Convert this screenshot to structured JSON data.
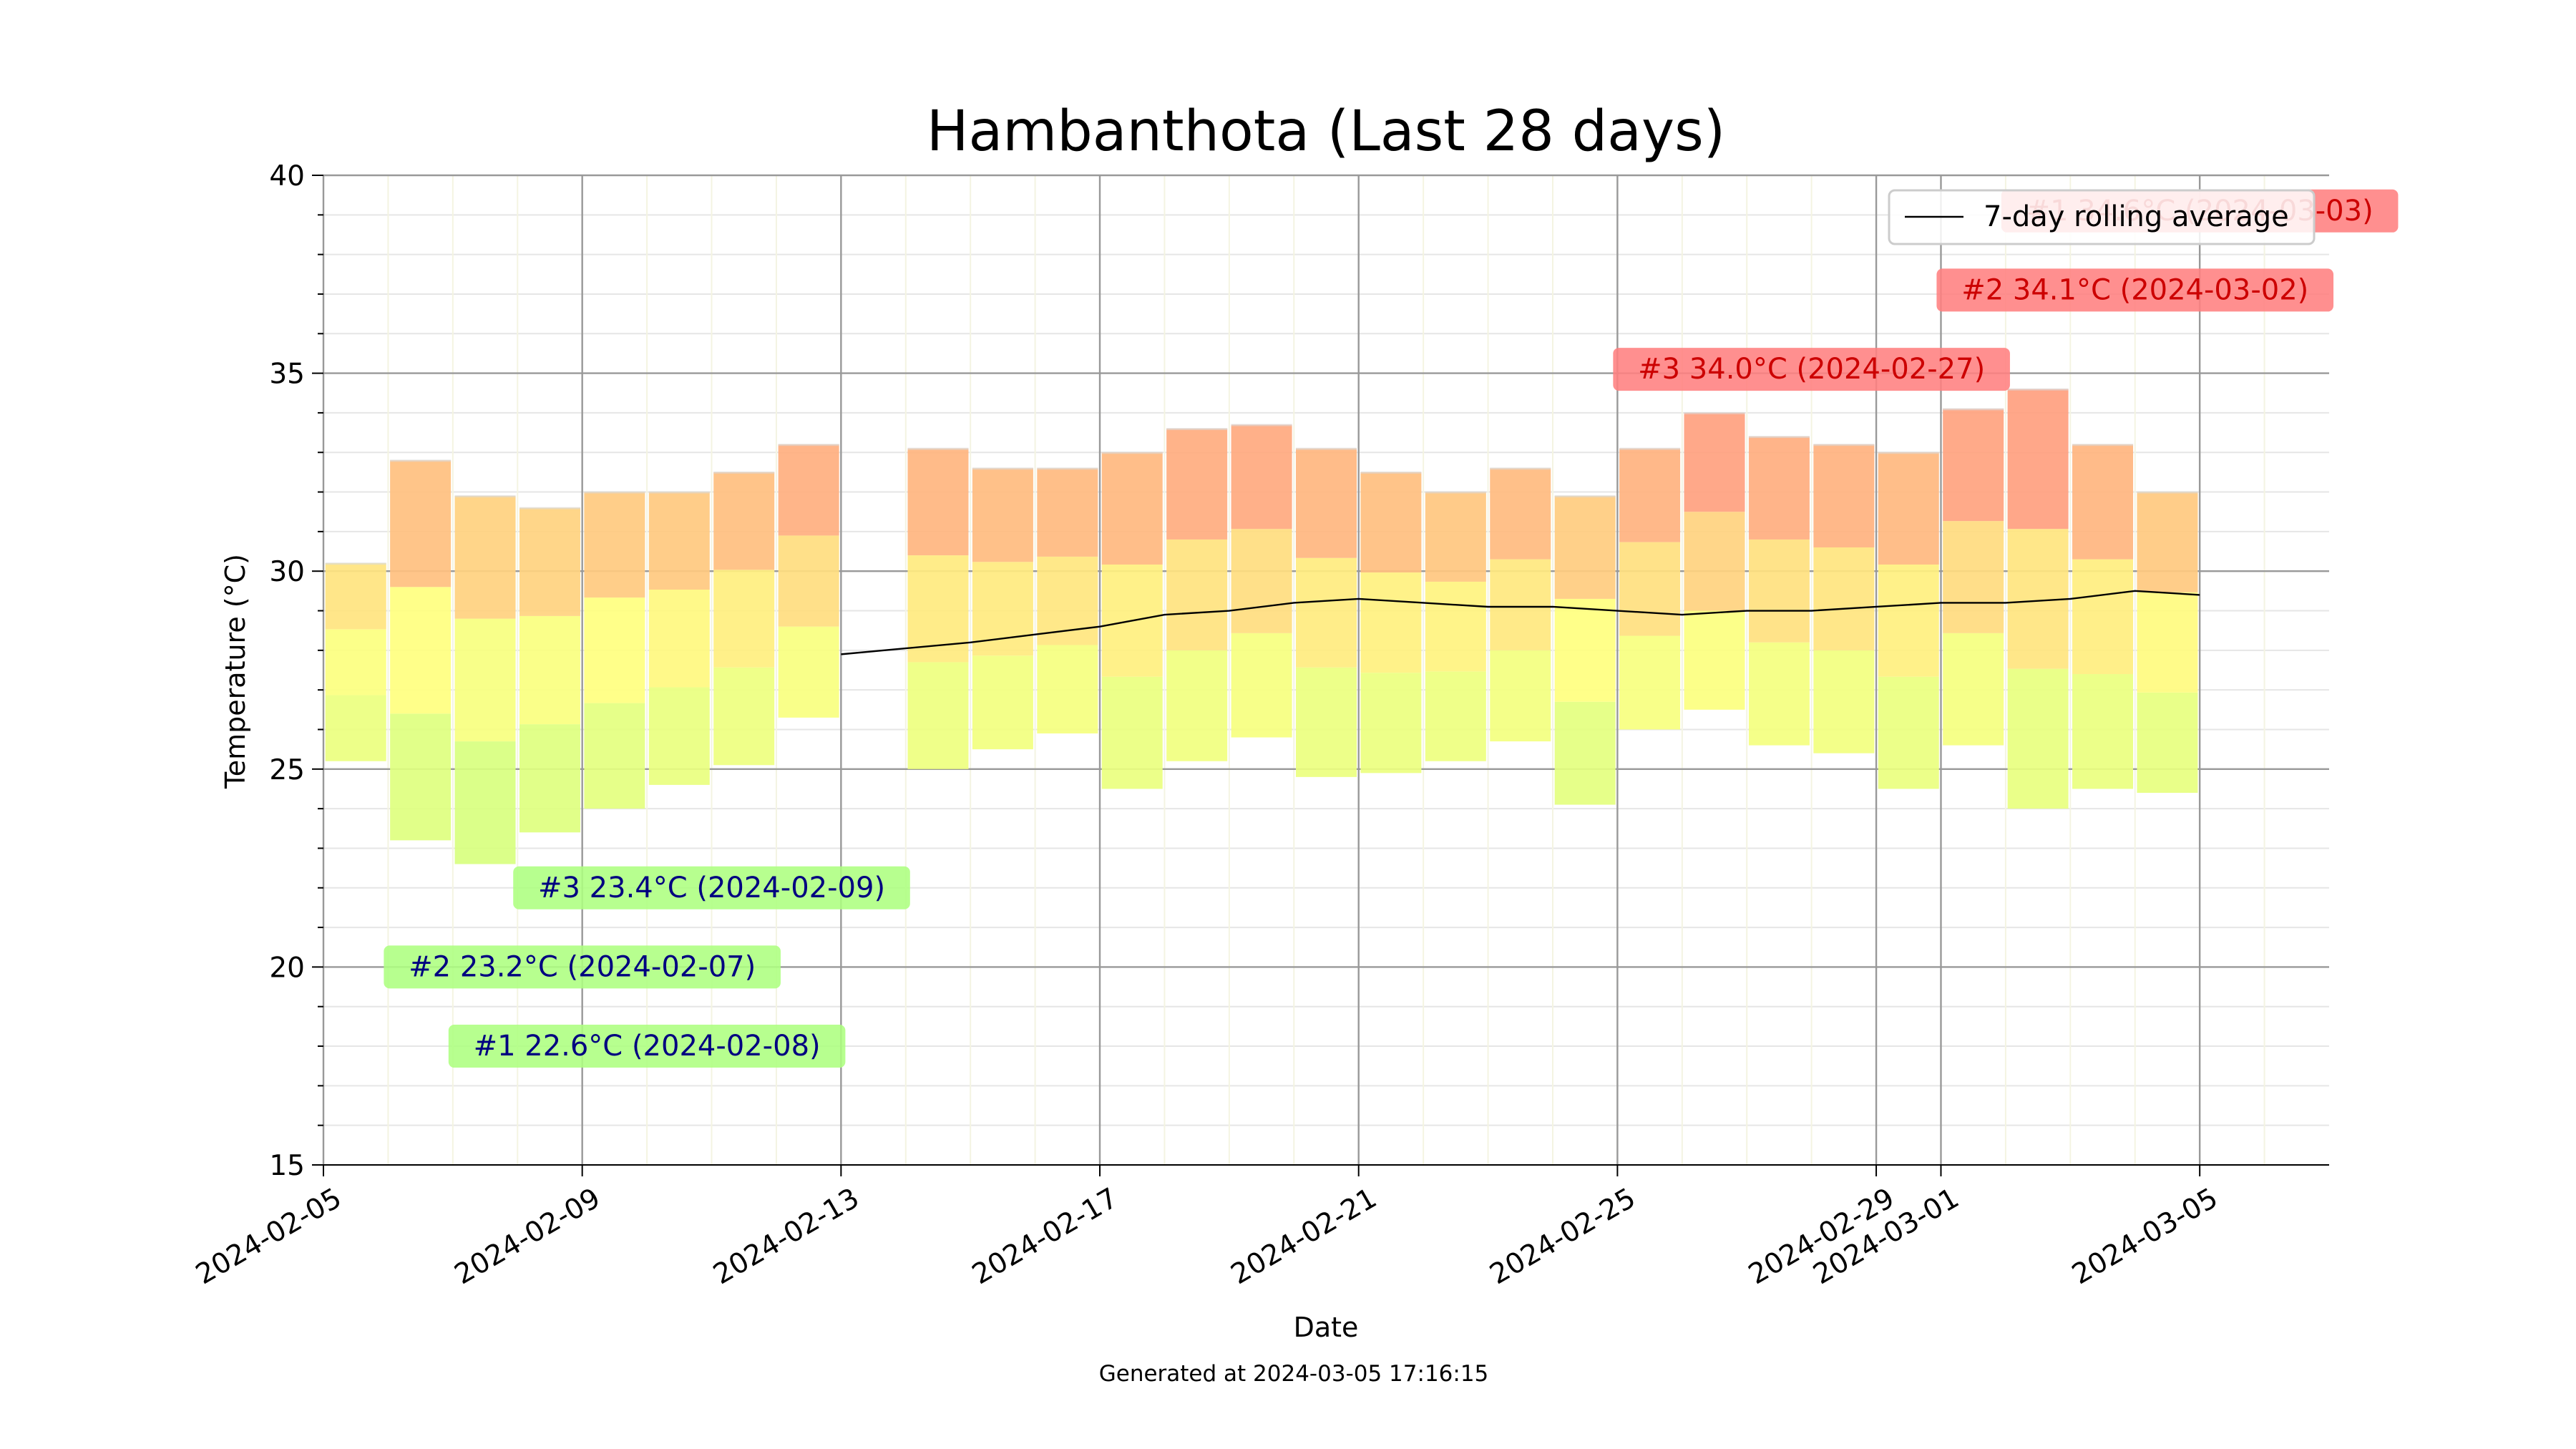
{
  "chart_data": {
    "type": "bar",
    "title": "Hambanthota (Last 28 days)",
    "xlabel": "Date",
    "ylabel": "Temperature (°C)",
    "footer": "Generated at 2024-03-05 17:16:15",
    "ylim": [
      15,
      40
    ],
    "yticks": [
      "15",
      "20",
      "25",
      "30",
      "35",
      "40"
    ],
    "xlim": [
      "2024-02-05",
      "2024-03-07"
    ],
    "xticks": [
      "2024-02-05",
      "2024-02-09",
      "2024-02-13",
      "2024-02-17",
      "2024-02-21",
      "2024-02-25",
      "2024-02-29",
      "2024-03-01",
      "2024-03-05"
    ],
    "grid": true,
    "legend": {
      "position": "top-right",
      "entries": [
        "7-day rolling average"
      ]
    },
    "days": [
      {
        "date": "2024-02-06",
        "min": 25.2,
        "max": 30.2
      },
      {
        "date": "2024-02-07",
        "min": 23.2,
        "max": 32.8
      },
      {
        "date": "2024-02-08",
        "min": 22.6,
        "max": 31.9
      },
      {
        "date": "2024-02-09",
        "min": 23.4,
        "max": 31.6
      },
      {
        "date": "2024-02-10",
        "min": 24.0,
        "max": 32.0
      },
      {
        "date": "2024-02-11",
        "min": 24.6,
        "max": 32.0
      },
      {
        "date": "2024-02-12",
        "min": 25.1,
        "max": 32.5
      },
      {
        "date": "2024-02-13",
        "min": 26.3,
        "max": 33.2
      },
      {
        "date": "2024-02-15",
        "min": 25.0,
        "max": 33.1
      },
      {
        "date": "2024-02-16",
        "min": 25.5,
        "max": 32.6
      },
      {
        "date": "2024-02-17",
        "min": 25.9,
        "max": 32.6
      },
      {
        "date": "2024-02-18",
        "min": 24.5,
        "max": 33.0
      },
      {
        "date": "2024-02-19",
        "min": 25.2,
        "max": 33.6
      },
      {
        "date": "2024-02-20",
        "min": 25.8,
        "max": 33.7
      },
      {
        "date": "2024-02-21",
        "min": 24.8,
        "max": 33.1
      },
      {
        "date": "2024-02-22",
        "min": 24.9,
        "max": 32.5
      },
      {
        "date": "2024-02-23",
        "min": 25.2,
        "max": 32.0
      },
      {
        "date": "2024-02-24",
        "min": 25.7,
        "max": 32.6
      },
      {
        "date": "2024-02-25",
        "min": 24.1,
        "max": 31.9
      },
      {
        "date": "2024-02-26",
        "min": 26.0,
        "max": 33.1
      },
      {
        "date": "2024-02-27",
        "min": 26.5,
        "max": 34.0
      },
      {
        "date": "2024-02-28",
        "min": 25.6,
        "max": 33.4
      },
      {
        "date": "2024-02-29",
        "min": 25.4,
        "max": 33.2
      },
      {
        "date": "2024-03-01",
        "min": 24.5,
        "max": 33.0
      },
      {
        "date": "2024-03-02",
        "min": 25.6,
        "max": 34.1
      },
      {
        "date": "2024-03-03",
        "min": 24.0,
        "max": 34.6
      },
      {
        "date": "2024-03-04",
        "min": 24.5,
        "max": 33.2
      },
      {
        "date": "2024-03-05",
        "min": 24.4,
        "max": 32.0
      }
    ],
    "rolling_average": {
      "name": "7-day rolling average",
      "points": [
        {
          "date": "2024-02-13",
          "value": 27.9
        },
        {
          "date": "2024-02-15",
          "value": 28.2
        },
        {
          "date": "2024-02-16",
          "value": 28.4
        },
        {
          "date": "2024-02-17",
          "value": 28.6
        },
        {
          "date": "2024-02-18",
          "value": 28.9
        },
        {
          "date": "2024-02-19",
          "value": 29.0
        },
        {
          "date": "2024-02-20",
          "value": 29.2
        },
        {
          "date": "2024-02-21",
          "value": 29.3
        },
        {
          "date": "2024-02-22",
          "value": 29.2
        },
        {
          "date": "2024-02-23",
          "value": 29.1
        },
        {
          "date": "2024-02-24",
          "value": 29.1
        },
        {
          "date": "2024-02-25",
          "value": 29.0
        },
        {
          "date": "2024-02-26",
          "value": 28.9
        },
        {
          "date": "2024-02-27",
          "value": 29.0
        },
        {
          "date": "2024-02-28",
          "value": 29.0
        },
        {
          "date": "2024-02-29",
          "value": 29.1
        },
        {
          "date": "2024-03-01",
          "value": 29.2
        },
        {
          "date": "2024-03-02",
          "value": 29.2
        },
        {
          "date": "2024-03-03",
          "value": 29.3
        },
        {
          "date": "2024-03-04",
          "value": 29.5
        },
        {
          "date": "2024-03-05",
          "value": 29.4
        }
      ]
    },
    "annotations": [
      {
        "text": "#1 34.6°C (2024-03-03)",
        "date": "2024-03-05",
        "value": 39.1,
        "kind": "hot"
      },
      {
        "text": "#2 34.1°C (2024-03-02)",
        "date": "2024-03-04",
        "value": 37.1,
        "kind": "hot"
      },
      {
        "text": "#3 34.0°C (2024-02-27)",
        "date": "2024-02-28",
        "value": 35.1,
        "kind": "hot"
      },
      {
        "text": "#3 23.4°C (2024-02-09)",
        "date": "2024-02-11",
        "value": 22.0,
        "kind": "cold"
      },
      {
        "text": "#2 23.2°C (2024-02-07)",
        "date": "2024-02-09",
        "value": 20.0,
        "kind": "cold"
      },
      {
        "text": "#1 22.6°C (2024-02-08)",
        "date": "2024-02-10",
        "value": 18.0,
        "kind": "cold"
      }
    ],
    "colors": {
      "hot_label_bg": "#ff7f7f",
      "hot_label_text": "#cc0000",
      "cold_label_bg": "#adff7f",
      "cold_label_text": "#000080",
      "rolling_line": "#000000"
    }
  }
}
